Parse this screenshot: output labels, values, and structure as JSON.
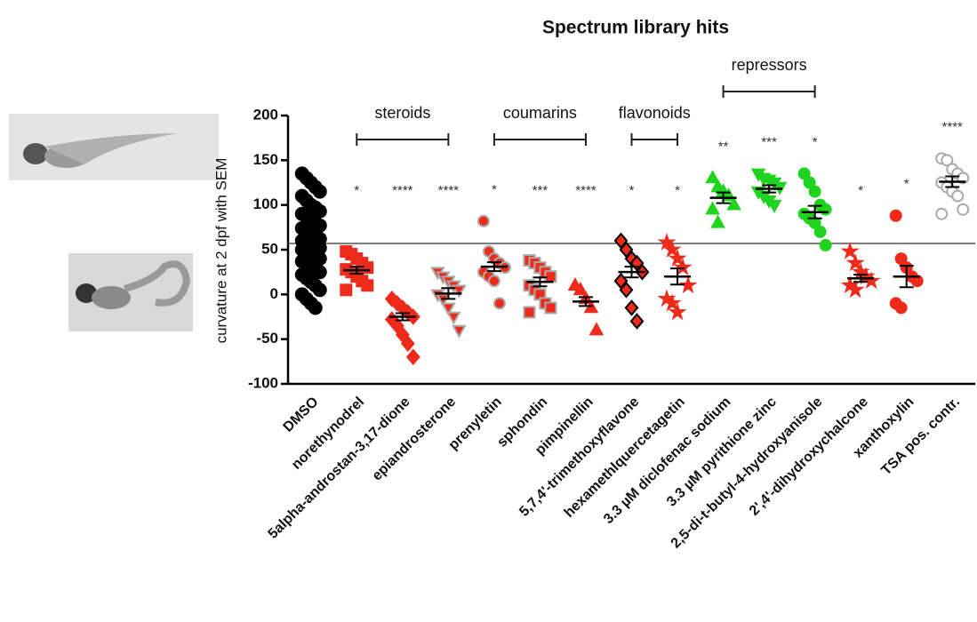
{
  "chart_data": {
    "type": "dot",
    "title": "Spectrum library hits",
    "y_label": "curvature at 2 dpf with SEM",
    "categories": [
      "DMSO",
      "norethynodrel",
      "5alpha-androstan-3,17-dione",
      "epiandrosterone",
      "prenyletin",
      "sphondin",
      "pimpinellin",
      "5,7,4'-trimethoxyflavone",
      "hexamethlquercetagetin",
      "3.3 µM diclofenac sodium",
      "3.3 µM pyrithione zinc",
      "2,5-di-t-butyl-4-hydroxyanisole",
      "2',4'-dihydroxychalcone",
      "xanthoxylin",
      "TSA pos. contr."
    ],
    "points": [
      [
        135,
        130,
        125,
        120,
        115,
        110,
        105,
        100,
        97,
        93,
        90,
        87,
        84,
        80,
        77,
        74,
        71,
        68,
        65,
        62,
        60,
        58,
        56,
        54,
        52,
        50,
        48,
        45,
        42,
        40,
        37,
        34,
        31,
        28,
        25,
        22,
        18,
        14,
        10,
        5,
        0,
        -5,
        -10,
        -15
      ],
      [
        48,
        45,
        40,
        35,
        30,
        28,
        25,
        20,
        15,
        10,
        5
      ],
      [
        -5,
        -10,
        -15,
        -20,
        -25,
        -28,
        -35,
        -45,
        -55,
        -70
      ],
      [
        25,
        20,
        15,
        10,
        5,
        0,
        -5,
        -15,
        -25,
        -40
      ],
      [
        82,
        48,
        40,
        35,
        30,
        25,
        20,
        15,
        -10
      ],
      [
        38,
        35,
        30,
        25,
        20,
        10,
        5,
        0,
        -10,
        -15,
        -20
      ],
      [
        10,
        5,
        -5,
        -15,
        -40
      ],
      [
        60,
        50,
        40,
        35,
        25,
        15,
        5,
        -15,
        -30
      ],
      [
        58,
        50,
        40,
        30,
        10,
        -5,
        -10,
        -20
      ],
      [
        130,
        120,
        115,
        110,
        100,
        95,
        80
      ],
      [
        135,
        130,
        128,
        125,
        120,
        115,
        110,
        105,
        100
      ],
      [
        135,
        125,
        115,
        100,
        95,
        90,
        85,
        80,
        70,
        55
      ],
      [
        48,
        35,
        25,
        20,
        15,
        10,
        5
      ],
      [
        88,
        40,
        30,
        20,
        15,
        -10,
        -15
      ],
      [
        152,
        150,
        140,
        135,
        130,
        125,
        120,
        115,
        110,
        95,
        90
      ]
    ],
    "means": [
      57,
      27,
      -25,
      1,
      31,
      14,
      -8,
      25,
      20,
      108,
      118,
      92,
      18,
      20,
      126
    ],
    "sems": [
      3,
      4,
      4,
      6,
      5,
      5,
      5,
      6,
      9,
      6,
      4,
      7,
      4,
      12,
      6
    ],
    "significance": [
      null,
      "*",
      "****",
      "****",
      "*",
      "***",
      "****",
      "*",
      "*",
      "**",
      "***",
      "*",
      "*",
      "*",
      "****"
    ],
    "markers": [
      "circle",
      "square",
      "diamond",
      "triangle-down",
      "circle",
      "square",
      "triangle",
      "diamond",
      "star",
      "triangle",
      "triangle-down",
      "circle",
      "star",
      "circle",
      "circle"
    ],
    "colors": [
      "#000000",
      "#ee2a1b",
      "#ee2a1b",
      "#ee2a1b",
      "#ee2a1b",
      "#ee2a1b",
      "#ee2a1b",
      "#ee2a1b",
      "#ee2a1b",
      "#1fd31f",
      "#1fd31f",
      "#1fd31f",
      "#ee2a1b",
      "#ee2a1b",
      "#ffffff"
    ],
    "edge_colors": [
      "#000000",
      "#ee2a1b",
      "#ee2a1b",
      "#aaaaaa",
      "#aaaaaa",
      "#aaaaaa",
      "#ee2a1b",
      "#000000",
      "#ee2a1b",
      "#1fd31f",
      "#1fd31f",
      "#1fd31f",
      "#ee2a1b",
      "#ee2a1b",
      "#aaaaaa"
    ],
    "groups": [
      {
        "label": "steroids",
        "members": [
          "norethynodrel",
          "epiandrosterone"
        ]
      },
      {
        "label": "coumarins",
        "members": [
          "prenyletin",
          "pimpinellin"
        ]
      },
      {
        "label": "flavonoids",
        "members": [
          "5,7,4'-trimethoxyflavone",
          "hexamethlquercetagetin"
        ]
      },
      {
        "label": "repressors",
        "members": [
          "3.3 µM diclofenac sodium",
          "2,5-di-t-butyl-4-hydroxyanisole"
        ]
      }
    ],
    "reference_line": 57,
    "ylim": [
      -100,
      200
    ],
    "yticks": [
      -100,
      -50,
      0,
      50,
      100,
      150,
      200
    ]
  }
}
